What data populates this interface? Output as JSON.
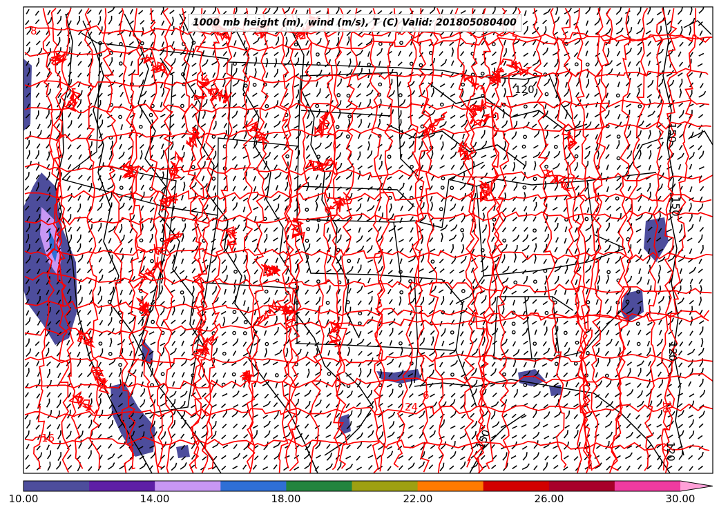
{
  "title": "1000 mb height (m), wind (m/s), T (C) Valid: 201805080400",
  "colorbar": {
    "labels": [
      "10.00",
      "14.00",
      "18.00",
      "22.00",
      "26.00",
      "30.00"
    ],
    "colors": [
      "#4d4d9c",
      "#5e1fa6",
      "#c897f4",
      "#2f6fd6",
      "#23843e",
      "#9ea012",
      "#ff7a00",
      "#d20000",
      "#a8002a",
      "#f03ba0",
      "#ffa0d8"
    ],
    "extend": "max"
  },
  "height_contour_labels": [
    "150",
    "120",
    "150",
    "120",
    "120",
    "150"
  ],
  "temperature_contour_labels": [
    "8",
    "16",
    "24",
    "6",
    "16"
  ],
  "colors": {
    "temperature_contour": "#ff0000",
    "height_contour": "#000000",
    "boundaries": "#000000",
    "shading_low": "#4d4d9c"
  }
}
